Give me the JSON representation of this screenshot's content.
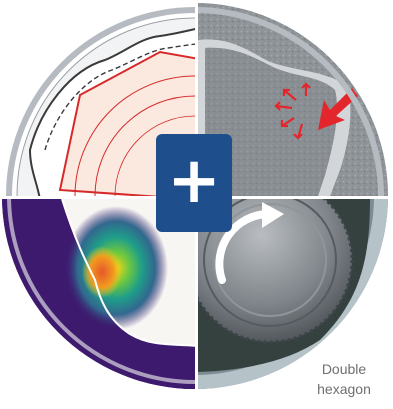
{
  "caption": {
    "line1": "Double",
    "line2": "hexagon"
  },
  "center_badge": {
    "symbol": "+",
    "icon": "plus-icon",
    "color": "#1e4f8c"
  },
  "quadrants": {
    "top_left": {
      "content": "hexagon-profile-drawing"
    },
    "top_right": {
      "content": "textured-surface-with-force-arrows",
      "arrow_color": "#e3262b"
    },
    "bottom_left": {
      "content": "heat-map-stress-plot",
      "background": "#3d1a6e"
    },
    "bottom_right": {
      "content": "nut-in-double-hexagon-socket",
      "rotation_icon": "rotation-arrow-icon"
    }
  },
  "colors": {
    "ring": "#c9ced3",
    "divider": "#ffffff",
    "accent_red": "#e3262b"
  }
}
